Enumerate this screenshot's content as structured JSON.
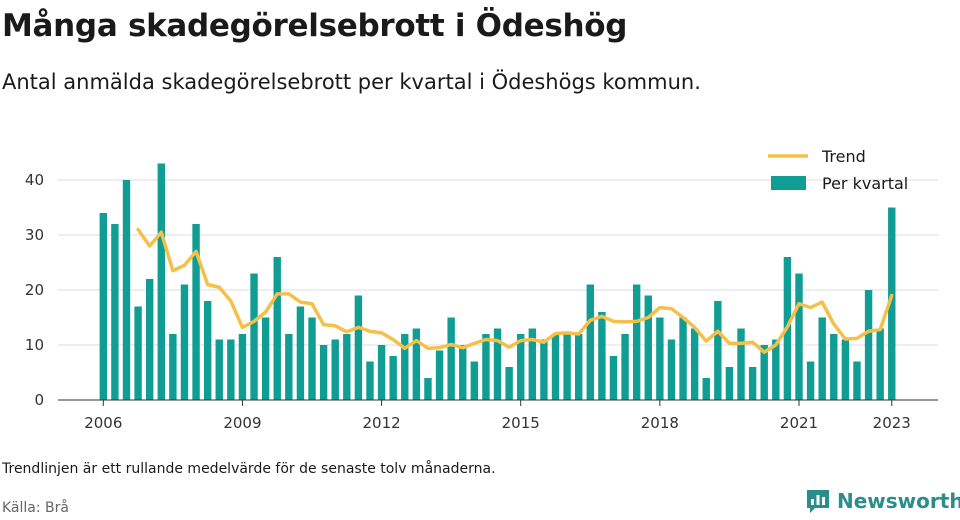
{
  "title": "Många skadegörelsebrott i Ödeshög",
  "subtitle": "Antal anmälda skadegörelsebrott per kvartal i Ödeshögs kommun.",
  "note": "Trendlinjen är ett rullande medelvärde för de senaste tolv månaderna.",
  "source": "Källa: Brå",
  "brand": "Newsworthy",
  "chart_data": {
    "type": "bar",
    "legend": [
      "Trend",
      "Per kvartal"
    ],
    "legend_position": "top-right",
    "colors": {
      "bars": "#109d94",
      "trend": "#f5c04a",
      "grid": "#dddddd",
      "brand": "#2a8f8c"
    },
    "ylim": [
      0,
      45
    ],
    "y_ticks": [
      0,
      10,
      20,
      30,
      40
    ],
    "x_ticks": [
      "2006",
      "2009",
      "2012",
      "2015",
      "2018",
      "2021",
      "2023"
    ],
    "grid": true,
    "series": [
      {
        "name": "Per kvartal",
        "type": "bar",
        "values": [
          34,
          32,
          40,
          17,
          22,
          43,
          12,
          21,
          32,
          18,
          11,
          11,
          12,
          23,
          15,
          26,
          12,
          17,
          15,
          10,
          11,
          12,
          19,
          7,
          10,
          8,
          12,
          13,
          4,
          9,
          15,
          10,
          7,
          12,
          13,
          6,
          12,
          13,
          11,
          12,
          12,
          12,
          21,
          16,
          8,
          12,
          21,
          19,
          15,
          11,
          15,
          13,
          4,
          18,
          6,
          13,
          6,
          10,
          11,
          26,
          23,
          7,
          15,
          12,
          11,
          7,
          20,
          13,
          35
        ]
      },
      {
        "name": "Trend",
        "type": "line",
        "values": [
          null,
          null,
          null,
          31,
          28,
          30.5,
          23.5,
          24.5,
          27,
          21,
          20.5,
          18,
          13.2,
          14.3,
          16,
          19.3,
          19.3,
          17.8,
          17.5,
          13.7,
          13.5,
          12.4,
          13.2,
          12.5,
          12.2,
          11,
          9.4,
          10.8,
          9.4,
          9.5,
          10.1,
          9.5,
          10.3,
          11,
          10.8,
          9.6,
          10.8,
          11,
          10.5,
          12.1,
          12.2,
          12,
          14.5,
          15.2,
          14.3,
          14.2,
          14.3,
          15,
          16.8,
          16.6,
          15,
          13.2,
          10.7,
          12.5,
          10.3,
          10.3,
          10.5,
          8.7,
          10,
          13.3,
          17.5,
          16.8,
          17.8,
          13.8,
          11.1,
          11.2,
          12.5,
          12.8,
          19
        ]
      }
    ]
  }
}
